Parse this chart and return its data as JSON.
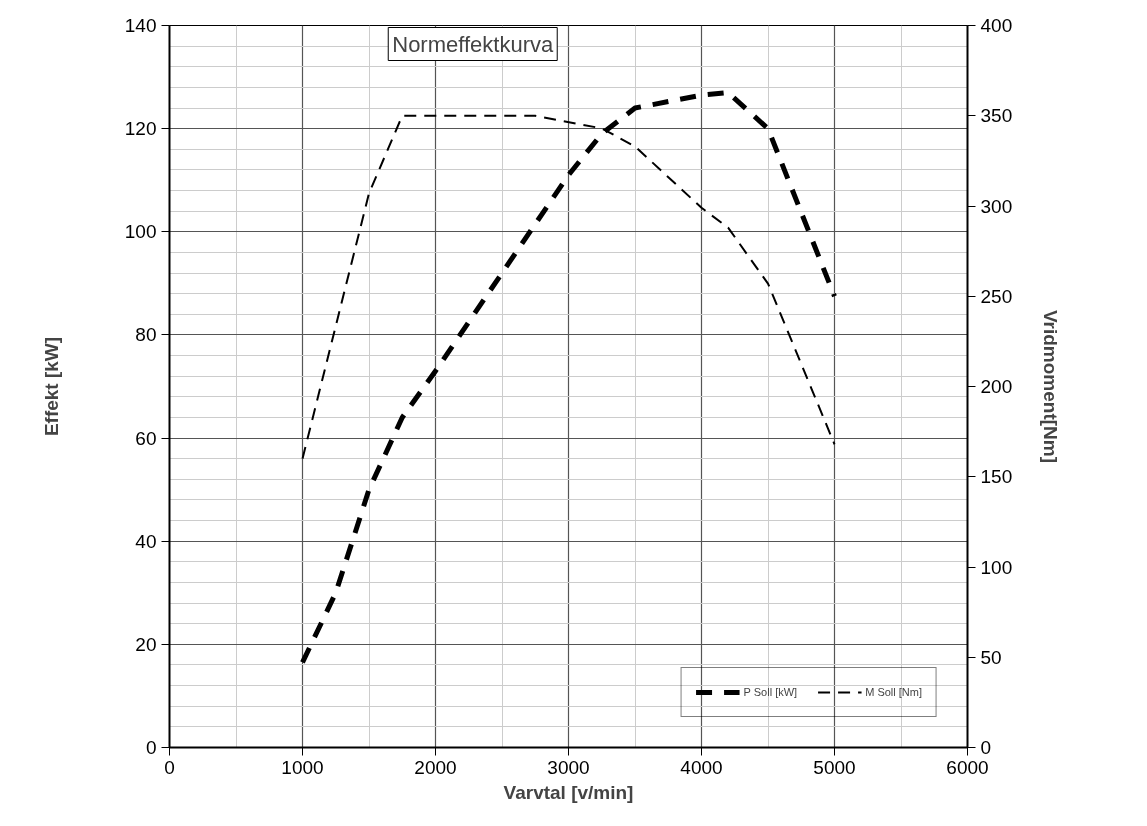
{
  "chart_data": {
    "type": "line",
    "title": "Normeffektkurva",
    "xlabel": "Varvtal [v/min]",
    "ylabel": "Effekt [kW]",
    "y2label": "Vridmoment[Nm]",
    "x": [
      1000,
      1250,
      1500,
      1750,
      2000,
      2500,
      2750,
      3000,
      3250,
      3500,
      4000,
      4200,
      4500,
      5000
    ],
    "series": [
      {
        "name": "P Soll [kW]",
        "color": "#000000",
        "line_style": "dashed",
        "values": [
          16.5,
          30,
          50,
          64,
          73,
          92,
          null,
          111,
          119,
          124,
          126.5,
          127,
          120,
          87.5
        ]
      },
      {
        "name": "M Soll [Nm]",
        "color": "#000000",
        "line_style": "dashed",
        "axis": "y2",
        "values": [
          160,
          null,
          307,
          350,
          null,
          null,
          350,
          null,
          343,
          333,
          299,
          288,
          257,
          168
        ]
      }
    ],
    "xlim": [
      0,
      6000
    ],
    "xticks": [
      0,
      1000,
      2000,
      3000,
      4000,
      5000,
      6000
    ],
    "ylim": [
      0,
      140
    ],
    "yticks": [
      0,
      20,
      40,
      60,
      80,
      100,
      120,
      140
    ],
    "y2lim": [
      0,
      400
    ],
    "y2ticks": [
      0,
      50,
      100,
      150,
      200,
      250,
      300,
      350,
      400
    ],
    "grid": true,
    "legend": "bottom right"
  }
}
